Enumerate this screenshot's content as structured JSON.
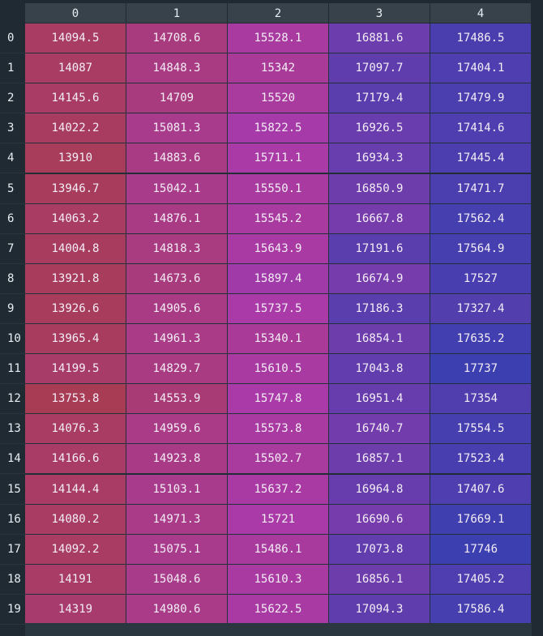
{
  "table": {
    "columns": [
      "0",
      "1",
      "2",
      "3",
      "4"
    ],
    "rows": [
      {
        "label": "0",
        "values": [
          "14094.5",
          "14708.6",
          "15528.1",
          "16881.6",
          "17486.5"
        ]
      },
      {
        "label": "1",
        "values": [
          "14087",
          "14848.3",
          "15342",
          "17097.7",
          "17404.1"
        ]
      },
      {
        "label": "2",
        "values": [
          "14145.6",
          "14709",
          "15520",
          "17179.4",
          "17479.9"
        ]
      },
      {
        "label": "3",
        "values": [
          "14022.2",
          "15081.3",
          "15822.5",
          "16926.5",
          "17414.6"
        ]
      },
      {
        "label": "4",
        "values": [
          "13910",
          "14883.6",
          "15711.1",
          "16934.3",
          "17445.4"
        ]
      },
      {
        "label": "5",
        "values": [
          "13946.7",
          "15042.1",
          "15550.1",
          "16850.9",
          "17471.7"
        ]
      },
      {
        "label": "6",
        "values": [
          "14063.2",
          "14876.1",
          "15545.2",
          "16667.8",
          "17562.4"
        ]
      },
      {
        "label": "7",
        "values": [
          "14004.8",
          "14818.3",
          "15643.9",
          "17191.6",
          "17564.9"
        ]
      },
      {
        "label": "8",
        "values": [
          "13921.8",
          "14673.6",
          "15897.4",
          "16674.9",
          "17527"
        ]
      },
      {
        "label": "9",
        "values": [
          "13926.6",
          "14905.6",
          "15737.5",
          "17186.3",
          "17327.4"
        ]
      },
      {
        "label": "10",
        "values": [
          "13965.4",
          "14961.3",
          "15340.1",
          "16854.1",
          "17635.2"
        ]
      },
      {
        "label": "11",
        "values": [
          "14199.5",
          "14829.7",
          "15610.5",
          "17043.8",
          "17737"
        ]
      },
      {
        "label": "12",
        "values": [
          "13753.8",
          "14553.9",
          "15747.8",
          "16951.4",
          "17354"
        ]
      },
      {
        "label": "13",
        "values": [
          "14076.3",
          "14959.6",
          "15573.8",
          "16740.7",
          "17554.5"
        ]
      },
      {
        "label": "14",
        "values": [
          "14166.6",
          "14923.8",
          "15502.7",
          "16857.1",
          "17523.4"
        ]
      },
      {
        "label": "15",
        "values": [
          "14144.4",
          "15103.1",
          "15637.2",
          "16964.8",
          "17407.6"
        ]
      },
      {
        "label": "16",
        "values": [
          "14080.2",
          "14971.3",
          "15721",
          "16690.6",
          "17669.1"
        ]
      },
      {
        "label": "17",
        "values": [
          "14092.2",
          "15075.1",
          "15486.1",
          "17073.8",
          "17746"
        ]
      },
      {
        "label": "18",
        "values": [
          "14191",
          "15048.6",
          "15610.3",
          "16856.1",
          "17405.2"
        ]
      },
      {
        "label": "19",
        "values": [
          "14319",
          "14980.6",
          "15622.5",
          "17094.3",
          "17586.4"
        ]
      }
    ],
    "colors": {
      "background": "#1f2a33",
      "header": "#37424b",
      "low": "#a83c55",
      "mid": "#a93aa8",
      "high": "#3c3fb0"
    }
  }
}
